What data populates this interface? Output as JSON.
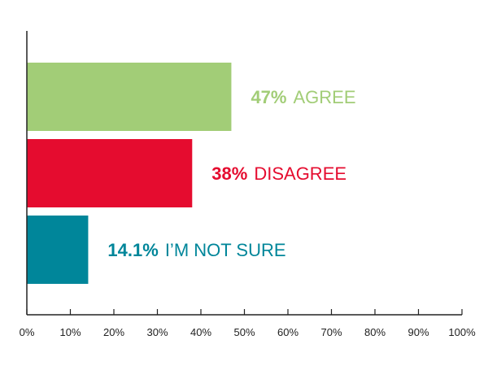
{
  "chart_data": {
    "type": "bar",
    "orientation": "horizontal",
    "categories": [
      "AGREE",
      "DISAGREE",
      "I'M NOT SURE"
    ],
    "values": [
      47,
      38,
      14.1
    ],
    "data_labels": [
      {
        "value_text": "47%",
        "label_text": "AGREE"
      },
      {
        "value_text": "38%",
        "label_text": "DISAGREE"
      },
      {
        "value_text": "14.1%",
        "label_text": "I’M NOT SURE"
      }
    ],
    "colors": [
      "#a2cd77",
      "#e50c2f",
      "#00869a"
    ],
    "x_ticks": [
      "0%",
      "10%",
      "20%",
      "30%",
      "40%",
      "50%",
      "60%",
      "70%",
      "80%",
      "90%",
      "100%"
    ],
    "xlim": [
      0,
      100
    ],
    "title": "",
    "xlabel": "",
    "ylabel": "",
    "grid": false,
    "legend": "none"
  }
}
